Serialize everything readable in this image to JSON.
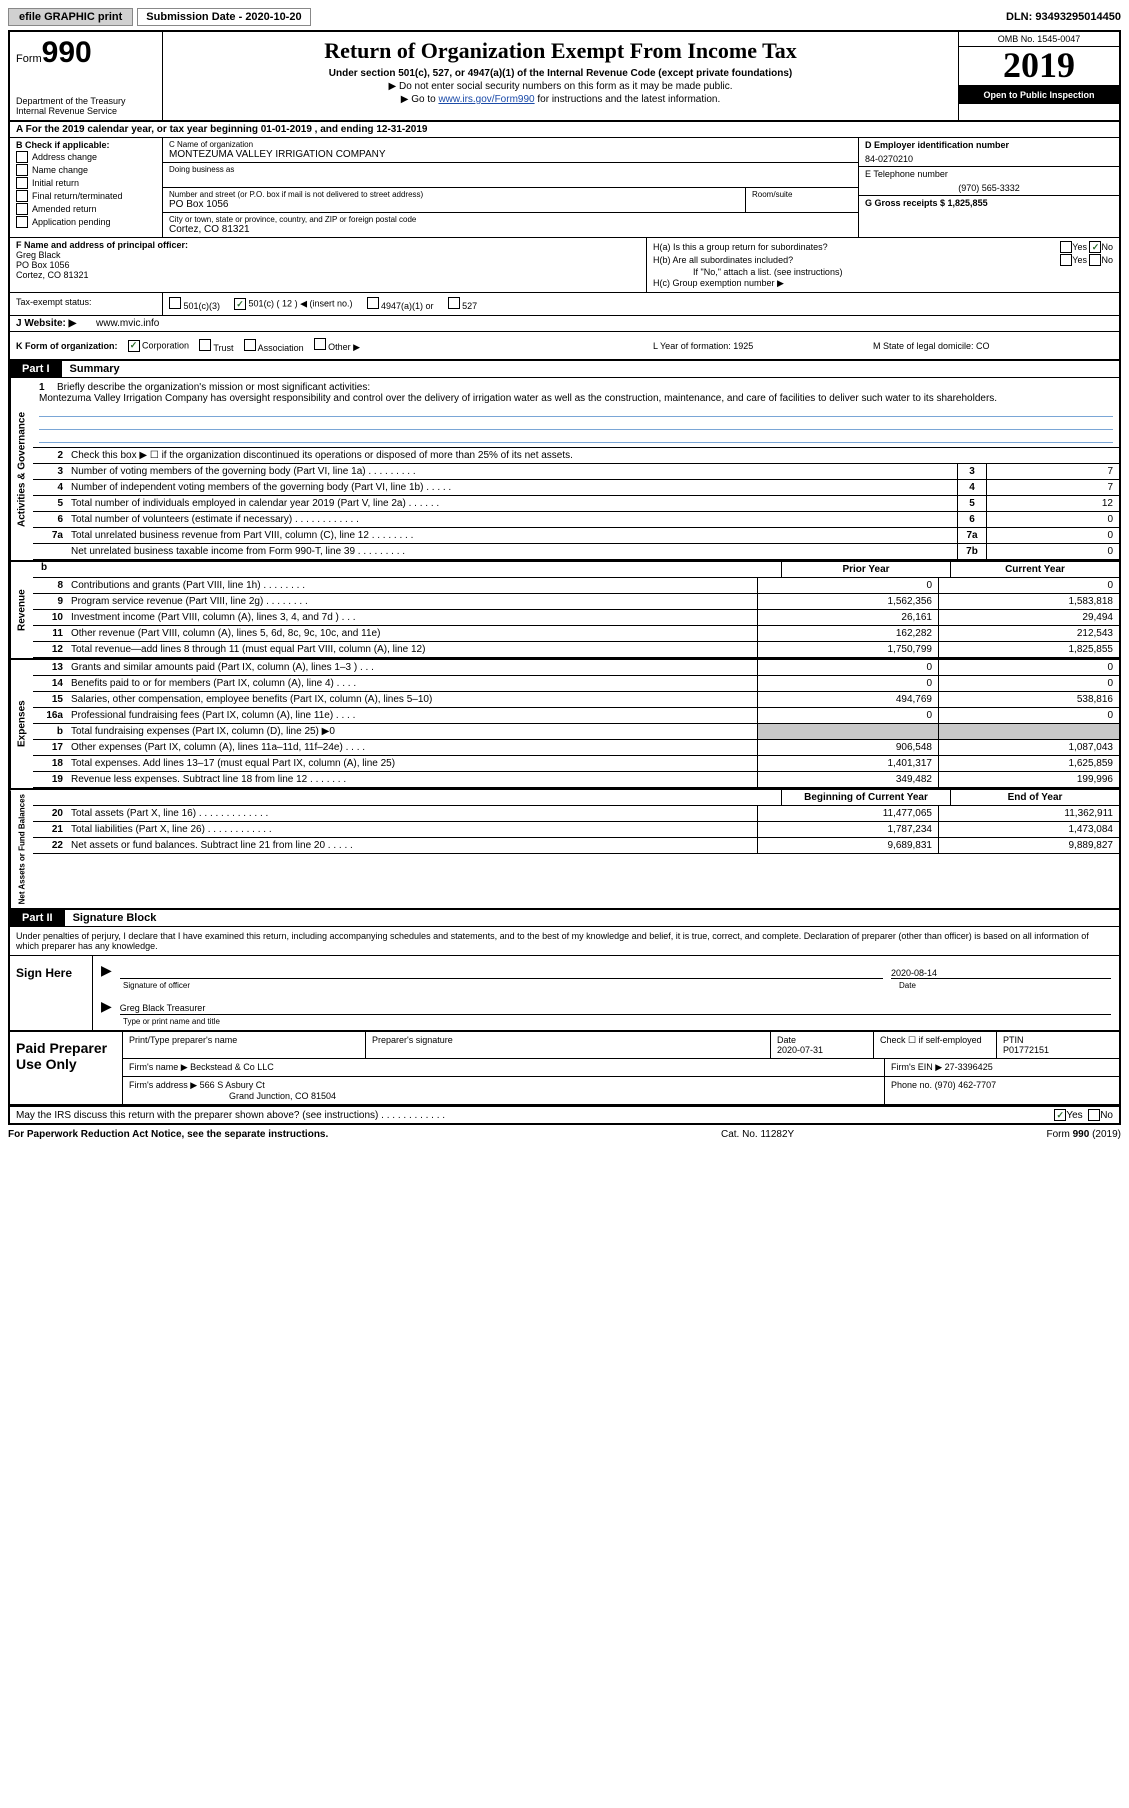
{
  "topbar": {
    "btn1": "efile GRAPHIC print",
    "btn2": "Submission Date - 2020-10-20",
    "dln": "DLN: 93493295014450"
  },
  "header": {
    "form_word": "Form",
    "form_num": "990",
    "dept": "Department of the Treasury\nInternal Revenue Service",
    "title": "Return of Organization Exempt From Income Tax",
    "sub1": "Under section 501(c), 527, or 4947(a)(1) of the Internal Revenue Code (except private foundations)",
    "sub2": "▶ Do not enter social security numbers on this form as it may be made public.",
    "sub3_pre": "▶ Go to ",
    "sub3_link": "www.irs.gov/Form990",
    "sub3_post": " for instructions and the latest information.",
    "omb": "OMB No. 1545-0047",
    "year": "2019",
    "open": "Open to Public Inspection"
  },
  "row_a": "A   For the 2019 calendar year, or tax year beginning 01-01-2019    , and ending 12-31-2019",
  "col_b": {
    "title": "B Check if applicable:",
    "opts": [
      "Address change",
      "Name change",
      "Initial return",
      "Final return/terminated",
      "Amended return",
      "Application pending"
    ]
  },
  "col_c": {
    "name_label": "C Name of organization",
    "name_value": "MONTEZUMA VALLEY IRRIGATION COMPANY",
    "dba_label": "Doing business as",
    "addr_label": "Number and street (or P.O. box if mail is not delivered to street address)",
    "addr_value": "PO Box 1056",
    "room_label": "Room/suite",
    "city_label": "City or town, state or province, country, and ZIP or foreign postal code",
    "city_value": "Cortez, CO  81321"
  },
  "col_d": {
    "ein_label": "D Employer identification number",
    "ein_value": "84-0270210",
    "tel_label": "E Telephone number",
    "tel_value": "(970) 565-3332",
    "gross_label": "G Gross receipts $ 1,825,855"
  },
  "col_f": {
    "title": "F  Name and address of principal officer:",
    "line1": "Greg Black",
    "line2": "PO Box 1056",
    "line3": "Cortez, CO  81321"
  },
  "col_h": {
    "ha": "H(a)  Is this a group return for subordinates?",
    "hb": "H(b)  Are all subordinates included?",
    "hb_note": "If \"No,\" attach a list. (see instructions)",
    "hc": "H(c)  Group exemption number ▶",
    "yes": "Yes",
    "no": "No"
  },
  "tax_status": {
    "label": "Tax-exempt status:",
    "o1": "501(c)(3)",
    "o2_pre": "501(c) ( 12 ) ◀ (insert no.)",
    "o3": "4947(a)(1) or",
    "o4": "527"
  },
  "website": {
    "label": "J   Website: ▶",
    "value": "www.mvic.info"
  },
  "row_k": {
    "left_label": "K Form of organization:",
    "opts": [
      "Corporation",
      "Trust",
      "Association",
      "Other ▶"
    ],
    "l": "L Year of formation: 1925",
    "m": "M State of legal domicile: CO"
  },
  "part1": {
    "tab": "Part I",
    "title": "Summary"
  },
  "mission": {
    "num": "1",
    "label": "Briefly describe the organization's mission or most significant activities:",
    "text": "Montezuma Valley Irrigation Company has oversight responsibility and control over the delivery of irrigation water as well as the construction, maintenance, and care of facilities to deliver such water to its shareholders."
  },
  "gov_lines": [
    {
      "n": "2",
      "t": "Check this box ▶ ☐ if the organization discontinued its operations or disposed of more than 25% of its net assets.",
      "nn": "",
      "v": ""
    },
    {
      "n": "3",
      "t": "Number of voting members of the governing body (Part VI, line 1a)   .    .    .    .    .    .    .    .    .",
      "nn": "3",
      "v": "7"
    },
    {
      "n": "4",
      "t": "Number of independent voting members of the governing body (Part VI, line 1b)   .    .    .    .    .",
      "nn": "4",
      "v": "7"
    },
    {
      "n": "5",
      "t": "Total number of individuals employed in calendar year 2019 (Part V, line 2a)   .    .    .    .    .    .",
      "nn": "5",
      "v": "12"
    },
    {
      "n": "6",
      "t": "Total number of volunteers (estimate if necessary)   .    .    .    .    .    .    .    .    .    .    .    .",
      "nn": "6",
      "v": "0"
    },
    {
      "n": "7a",
      "t": "Total unrelated business revenue from Part VIII, column (C), line 12   .    .    .    .    .    .    .    .",
      "nn": "7a",
      "v": "0"
    },
    {
      "n": "",
      "t": "Net unrelated business taxable income from Form 990-T, line 39   .    .    .    .    .    .    .    .    .",
      "nn": "7b",
      "v": "0"
    }
  ],
  "cols": {
    "prior": "Prior Year",
    "current": "Current Year"
  },
  "revenue": [
    {
      "n": "8",
      "t": "Contributions and grants (Part VIII, line 1h)   .    .    .    .    .    .    .    .",
      "p": "0",
      "c": "0"
    },
    {
      "n": "9",
      "t": "Program service revenue (Part VIII, line 2g)   .    .    .    .    .    .    .    .",
      "p": "1,562,356",
      "c": "1,583,818"
    },
    {
      "n": "10",
      "t": "Investment income (Part VIII, column (A), lines 3, 4, and 7d )   .    .    .",
      "p": "26,161",
      "c": "29,494"
    },
    {
      "n": "11",
      "t": "Other revenue (Part VIII, column (A), lines 5, 6d, 8c, 9c, 10c, and 11e)",
      "p": "162,282",
      "c": "212,543"
    },
    {
      "n": "12",
      "t": "Total revenue—add lines 8 through 11 (must equal Part VIII, column (A), line 12)",
      "p": "1,750,799",
      "c": "1,825,855"
    }
  ],
  "expenses": [
    {
      "n": "13",
      "t": "Grants and similar amounts paid (Part IX, column (A), lines 1–3 )   .    .    .",
      "p": "0",
      "c": "0"
    },
    {
      "n": "14",
      "t": "Benefits paid to or for members (Part IX, column (A), line 4)   .    .    .    .",
      "p": "0",
      "c": "0"
    },
    {
      "n": "15",
      "t": "Salaries, other compensation, employee benefits (Part IX, column (A), lines 5–10)",
      "p": "494,769",
      "c": "538,816"
    },
    {
      "n": "16a",
      "t": "Professional fundraising fees (Part IX, column (A), line 11e)   .    .    .    .",
      "p": "0",
      "c": "0"
    },
    {
      "n": "b",
      "t": "Total fundraising expenses (Part IX, column (D), line 25) ▶0",
      "p": "",
      "c": "",
      "shade": true
    },
    {
      "n": "17",
      "t": "Other expenses (Part IX, column (A), lines 11a–11d, 11f–24e)   .    .    .    .",
      "p": "906,548",
      "c": "1,087,043"
    },
    {
      "n": "18",
      "t": "Total expenses. Add lines 13–17 (must equal Part IX, column (A), line 25)",
      "p": "1,401,317",
      "c": "1,625,859"
    },
    {
      "n": "19",
      "t": "Revenue less expenses. Subtract line 18 from line 12 .    .    .    .    .    .    .",
      "p": "349,482",
      "c": "199,996"
    }
  ],
  "netcols": {
    "beg": "Beginning of Current Year",
    "end": "End of Year"
  },
  "netassets": [
    {
      "n": "20",
      "t": "Total assets (Part X, line 16)   .    .    .    .    .    .    .    .    .    .    .    .    .",
      "p": "11,477,065",
      "c": "11,362,911"
    },
    {
      "n": "21",
      "t": "Total liabilities (Part X, line 26)   .    .    .    .    .    .    .    .    .    .    .    .",
      "p": "1,787,234",
      "c": "1,473,084"
    },
    {
      "n": "22",
      "t": "Net assets or fund balances. Subtract line 21 from line 20   .    .    .    .    .",
      "p": "9,689,831",
      "c": "9,889,827"
    }
  ],
  "part2": {
    "tab": "Part II",
    "title": "Signature Block"
  },
  "sig_intro": "Under penalties of perjury, I declare that I have examined this return, including accompanying schedules and statements, and to the best of my knowledge and belief, it is true, correct, and complete. Declaration of preparer (other than officer) is based on all information of which preparer has any knowledge.",
  "sign": {
    "label": "Sign Here",
    "sig_officer": "Signature of officer",
    "date": "2020-08-14",
    "date_label": "Date",
    "name": "Greg Black Treasurer",
    "name_label": "Type or print name and title"
  },
  "paid": {
    "label": "Paid Preparer Use Only",
    "h1": "Print/Type preparer's name",
    "h2": "Preparer's signature",
    "h3": "Date",
    "h3v": "2020-07-31",
    "h4": "Check ☐ if self-employed",
    "h5": "PTIN",
    "h5v": "P01772151",
    "firm_label": "Firm's name     ▶",
    "firm": "Beckstead & Co LLC",
    "ein_label": "Firm's EIN ▶",
    "ein": "27-3396425",
    "addr_label": "Firm's address ▶",
    "addr1": "566 S Asbury Ct",
    "addr2": "Grand Junction, CO  81504",
    "phone_label": "Phone no.",
    "phone": "(970) 462-7707"
  },
  "discuss": "May the IRS discuss this return with the preparer shown above? (see instructions)   .    .    .    .    .    .    .    .    .    .    .    .",
  "footer": {
    "left": "For Paperwork Reduction Act Notice, see the separate instructions.",
    "mid": "Cat. No. 11282Y",
    "right": "Form 990 (2019)"
  },
  "side_labels": {
    "gov": "Activities & Governance",
    "rev": "Revenue",
    "exp": "Expenses",
    "net": "Net Assets or Fund Balances"
  }
}
